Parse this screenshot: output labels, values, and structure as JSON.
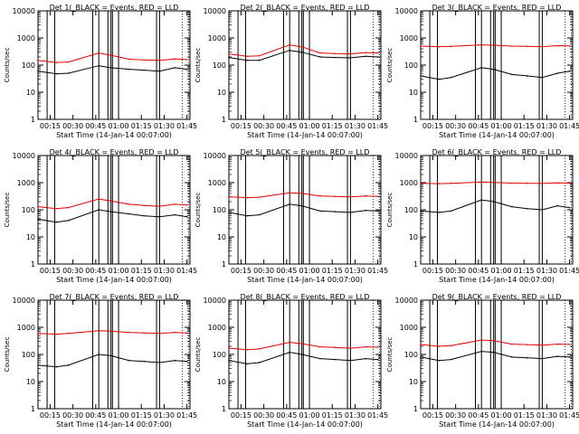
{
  "page": {
    "ytitle": "Counts/sec",
    "xtitle": "Start Time (14-Jan-14 00:07:00)"
  },
  "colors": {
    "events": "#000000",
    "lld": "#e00000",
    "axes": "#000000",
    "background": "#ffffff"
  },
  "chart_data": [
    {
      "type": "line",
      "title": "Det 1(_BLACK = Events, RED = LLD",
      "ylog": true,
      "ylim": [
        1,
        10000
      ],
      "xticks": [
        "00:15",
        "00:30",
        "00:45",
        "01:00",
        "01:15",
        "01:30",
        "01:45"
      ],
      "yticks": [
        "1",
        "10",
        "100",
        "1000",
        "10000"
      ],
      "series": [
        {
          "name": "Events",
          "color": "#000000",
          "x": [
            0,
            12,
            20,
            40,
            48,
            60,
            70,
            80,
            90,
            98
          ],
          "y": [
            60,
            48,
            50,
            95,
            80,
            70,
            65,
            60,
            80,
            70
          ]
        },
        {
          "name": "LLD",
          "color": "#e00000",
          "x": [
            0,
            12,
            20,
            40,
            48,
            60,
            70,
            80,
            90,
            98
          ],
          "y": [
            150,
            125,
            130,
            280,
            230,
            165,
            155,
            150,
            170,
            160
          ]
        }
      ]
    },
    {
      "type": "line",
      "title": "Det 2(_BLACK = Events, RED = LLD",
      "ylog": true,
      "ylim": [
        1,
        10000
      ],
      "xticks": [
        "00:15",
        "00:30",
        "00:45",
        "01:00",
        "01:15",
        "01:30",
        "01:45"
      ],
      "yticks": [
        "1",
        "10",
        "100",
        "1000",
        "10000"
      ],
      "series": [
        {
          "name": "Events",
          "color": "#000000",
          "x": [
            0,
            12,
            20,
            40,
            48,
            60,
            70,
            80,
            90,
            98
          ],
          "y": [
            190,
            150,
            150,
            350,
            300,
            200,
            190,
            185,
            210,
            200
          ]
        },
        {
          "name": "LLD",
          "color": "#e00000",
          "x": [
            0,
            12,
            20,
            40,
            48,
            60,
            70,
            80,
            90,
            98
          ],
          "y": [
            260,
            210,
            220,
            560,
            470,
            280,
            265,
            260,
            290,
            280
          ]
        }
      ]
    },
    {
      "type": "line",
      "title": "Det 3(_BLACK = Events, RED = LLD",
      "ylog": true,
      "ylim": [
        1,
        10000
      ],
      "xticks": [
        "00:15",
        "00:30",
        "00:45",
        "01:00",
        "01:15",
        "01:30",
        "01:45"
      ],
      "yticks": [
        "1",
        "10",
        "100",
        "1000",
        "10000"
      ],
      "series": [
        {
          "name": "Events",
          "color": "#000000",
          "x": [
            0,
            12,
            20,
            40,
            48,
            60,
            70,
            80,
            90,
            98
          ],
          "y": [
            40,
            30,
            35,
            80,
            70,
            45,
            40,
            35,
            50,
            60
          ]
        },
        {
          "name": "LLD",
          "color": "#e00000",
          "x": [
            0,
            12,
            20,
            40,
            48,
            60,
            70,
            80,
            90,
            98
          ],
          "y": [
            500,
            480,
            490,
            560,
            540,
            500,
            490,
            480,
            520,
            510
          ]
        }
      ]
    },
    {
      "type": "line",
      "title": "Det 4(_BLACK = Events, RED = LLD",
      "ylog": true,
      "ylim": [
        1,
        10000
      ],
      "xticks": [
        "00:15",
        "00:30",
        "00:45",
        "01:00",
        "01:15",
        "01:30",
        "01:45"
      ],
      "yticks": [
        "1",
        "10",
        "100",
        "1000",
        "10000"
      ],
      "series": [
        {
          "name": "Events",
          "color": "#000000",
          "x": [
            0,
            12,
            20,
            40,
            48,
            60,
            70,
            80,
            90,
            98
          ],
          "y": [
            45,
            35,
            40,
            100,
            85,
            70,
            60,
            55,
            65,
            55
          ]
        },
        {
          "name": "LLD",
          "color": "#e00000",
          "x": [
            0,
            12,
            20,
            40,
            48,
            60,
            70,
            80,
            90,
            98
          ],
          "y": [
            130,
            110,
            120,
            250,
            210,
            160,
            145,
            135,
            160,
            150
          ]
        }
      ]
    },
    {
      "type": "line",
      "title": "Det 5(_BLACK = Events, RED = LLD",
      "ylog": true,
      "ylim": [
        1,
        10000
      ],
      "xticks": [
        "00:15",
        "00:30",
        "00:45",
        "01:00",
        "01:15",
        "01:30",
        "01:45"
      ],
      "yticks": [
        "1",
        "10",
        "100",
        "1000",
        "10000"
      ],
      "series": [
        {
          "name": "Events",
          "color": "#000000",
          "x": [
            0,
            12,
            20,
            40,
            48,
            60,
            70,
            80,
            90,
            98
          ],
          "y": [
            80,
            60,
            65,
            160,
            140,
            90,
            85,
            80,
            95,
            90
          ]
        },
        {
          "name": "LLD",
          "color": "#e00000",
          "x": [
            0,
            12,
            20,
            40,
            48,
            60,
            70,
            80,
            90,
            98
          ],
          "y": [
            300,
            280,
            290,
            420,
            400,
            320,
            310,
            300,
            320,
            310
          ]
        }
      ]
    },
    {
      "type": "line",
      "title": "Det 6(_BLACK = Events, RED = LLD",
      "ylog": true,
      "ylim": [
        1,
        10000
      ],
      "xticks": [
        "00:15",
        "00:30",
        "00:45",
        "01:00",
        "01:15",
        "01:30",
        "01:45"
      ],
      "yticks": [
        "1",
        "10",
        "100",
        "1000",
        "10000"
      ],
      "series": [
        {
          "name": "Events",
          "color": "#000000",
          "x": [
            0,
            12,
            20,
            40,
            48,
            60,
            70,
            80,
            90,
            98
          ],
          "y": [
            90,
            80,
            90,
            230,
            200,
            130,
            110,
            100,
            140,
            120
          ]
        },
        {
          "name": "LLD",
          "color": "#e00000",
          "x": [
            0,
            12,
            20,
            40,
            48,
            60,
            70,
            80,
            90,
            98
          ],
          "y": [
            950,
            920,
            940,
            1050,
            1020,
            960,
            950,
            930,
            980,
            960
          ]
        }
      ]
    },
    {
      "type": "line",
      "title": "Det 7(_BLACK = Events, RED = LLD",
      "ylog": true,
      "ylim": [
        1,
        10000
      ],
      "xticks": [
        "00:15",
        "00:30",
        "00:45",
        "01:00",
        "01:15",
        "01:30",
        "01:45"
      ],
      "yticks": [
        "1",
        "10",
        "100",
        "1000",
        "10000"
      ],
      "series": [
        {
          "name": "Events",
          "color": "#000000",
          "x": [
            0,
            12,
            20,
            40,
            48,
            60,
            70,
            80,
            90,
            98
          ],
          "y": [
            40,
            35,
            40,
            100,
            90,
            60,
            55,
            50,
            60,
            55
          ]
        },
        {
          "name": "LLD",
          "color": "#e00000",
          "x": [
            0,
            12,
            20,
            40,
            48,
            60,
            70,
            80,
            90,
            98
          ],
          "y": [
            600,
            560,
            600,
            750,
            720,
            650,
            620,
            600,
            650,
            620
          ]
        }
      ]
    },
    {
      "type": "line",
      "title": "Det 8(_BLACK = Events, RED = LLD",
      "ylog": true,
      "ylim": [
        1,
        10000
      ],
      "xticks": [
        "00:15",
        "00:30",
        "00:45",
        "01:00",
        "01:15",
        "01:30",
        "01:45"
      ],
      "yticks": [
        "1",
        "10",
        "100",
        "1000",
        "10000"
      ],
      "series": [
        {
          "name": "Events",
          "color": "#000000",
          "x": [
            0,
            12,
            20,
            40,
            48,
            60,
            70,
            80,
            90,
            98
          ],
          "y": [
            60,
            45,
            50,
            120,
            100,
            70,
            65,
            60,
            70,
            65
          ]
        },
        {
          "name": "LLD",
          "color": "#e00000",
          "x": [
            0,
            12,
            20,
            40,
            48,
            60,
            70,
            80,
            90,
            98
          ],
          "y": [
            170,
            150,
            160,
            280,
            250,
            190,
            180,
            170,
            190,
            185
          ]
        }
      ]
    },
    {
      "type": "line",
      "title": "Det 9(_BLACK = Events, RED = LLD",
      "ylog": true,
      "ylim": [
        1,
        10000
      ],
      "xticks": [
        "00:15",
        "00:30",
        "00:45",
        "01:00",
        "01:15",
        "01:30",
        "01:45"
      ],
      "yticks": [
        "1",
        "10",
        "100",
        "1000",
        "10000"
      ],
      "series": [
        {
          "name": "Events",
          "color": "#000000",
          "x": [
            0,
            12,
            20,
            40,
            48,
            60,
            70,
            80,
            90,
            98
          ],
          "y": [
            80,
            60,
            65,
            130,
            120,
            80,
            75,
            70,
            85,
            80
          ]
        },
        {
          "name": "LLD",
          "color": "#e00000",
          "x": [
            0,
            12,
            20,
            40,
            48,
            60,
            70,
            80,
            90,
            98
          ],
          "y": [
            230,
            200,
            210,
            340,
            320,
            240,
            230,
            220,
            240,
            235
          ]
        }
      ]
    }
  ]
}
